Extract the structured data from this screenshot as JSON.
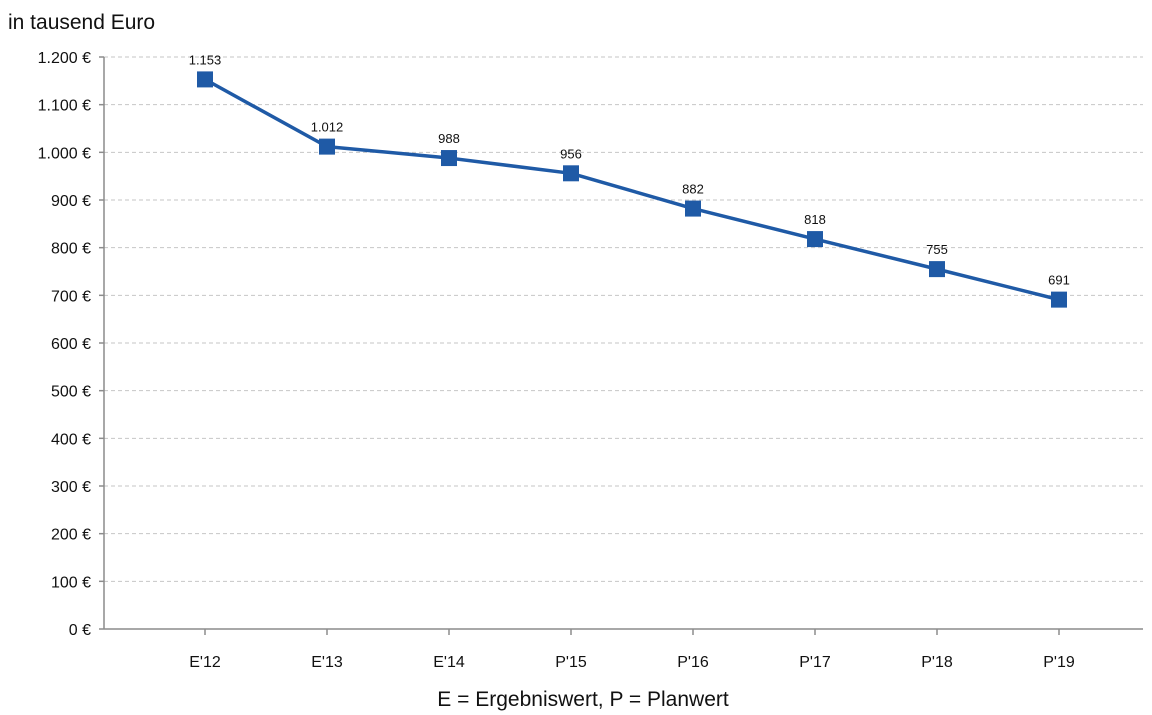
{
  "chart_data": {
    "type": "line",
    "unit_label": "in tausend Euro",
    "footnote": "E = Ergebniswert, P = Planwert",
    "categories": [
      "E'12",
      "E'13",
      "E'14",
      "P'15",
      "P'16",
      "P'17",
      "P'18",
      "P'19"
    ],
    "series": [
      {
        "values": [
          1153,
          1012,
          988,
          956,
          882,
          818,
          755,
          691
        ],
        "data_labels": [
          "1.153",
          "1.012",
          "988",
          "956",
          "882",
          "818",
          "755",
          "691"
        ],
        "color": "#1f5aa6"
      }
    ],
    "y_ticks": [
      0,
      100,
      200,
      300,
      400,
      500,
      600,
      700,
      800,
      900,
      1000,
      1100,
      1200
    ],
    "y_tick_labels": [
      "0 €",
      "100 €",
      "200 €",
      "300 €",
      "400 €",
      "500 €",
      "600 €",
      "700 €",
      "800 €",
      "900 €",
      "1.000 €",
      "1.100 €",
      "1.200 €"
    ],
    "ylim": [
      0,
      1200
    ],
    "grid": true,
    "grid_style": "dashed",
    "legend": "none",
    "marker": "square"
  }
}
